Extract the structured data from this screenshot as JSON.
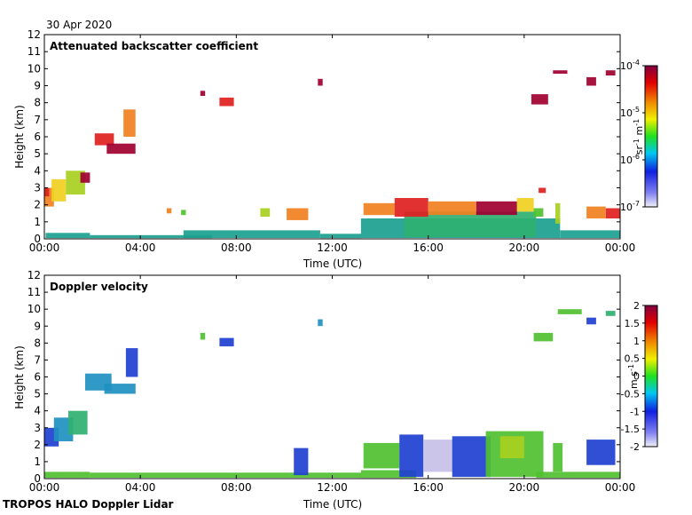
{
  "header": {
    "date": "30 Apr 2020"
  },
  "footer": {
    "label": "TROPOS HALO Doppler Lidar"
  },
  "colors": {
    "teal": "#1a9f8f",
    "green_teal": "#2fb070",
    "green": "#50c030",
    "yellow_green": "#a8d020",
    "yellow": "#f0d020",
    "orange": "#f08020",
    "red": "#e02020",
    "dark_red": "#a00030",
    "blue": "#2040d0",
    "dark_blue": "#1020a0",
    "cyan": "#2090c0",
    "light_purple": "#c8c0e8"
  },
  "chart_data": [
    {
      "type": "heatmap",
      "title": "Attenuated backscatter coefficient",
      "xlabel": "Time (UTC)",
      "ylabel": "Height (km)",
      "xlim": [
        0,
        24
      ],
      "ylim": [
        0,
        12
      ],
      "x_ticks": [
        "00:00",
        "04:00",
        "08:00",
        "12:00",
        "16:00",
        "20:00",
        "00:00"
      ],
      "y_ticks": [
        "0",
        "1",
        "2",
        "3",
        "4",
        "5",
        "6",
        "7",
        "8",
        "9",
        "10",
        "11",
        "12"
      ],
      "colorbar": {
        "label": "sr-1 m-1",
        "scale": "log",
        "range": [
          1e-07,
          0.0001
        ],
        "tick_base": "10",
        "tick_exponents": [
          "-7",
          "-6",
          "-5",
          "-4"
        ],
        "tick_values": [
          1e-07,
          1e-06,
          1e-05,
          0.0001
        ]
      },
      "features": [
        {
          "t0": 0.05,
          "t1": 1.9,
          "h0": 0.05,
          "h1": 0.35,
          "color": "teal"
        },
        {
          "t0": 1.9,
          "t1": 7.0,
          "h0": 0.05,
          "h1": 0.22,
          "color": "teal"
        },
        {
          "t0": 5.8,
          "t1": 11.5,
          "h0": 0.05,
          "h1": 0.5,
          "color": "teal"
        },
        {
          "t0": 11.5,
          "t1": 13.2,
          "h0": 0.05,
          "h1": 0.3,
          "color": "teal"
        },
        {
          "t0": 13.2,
          "t1": 21.5,
          "h0": 0.05,
          "h1": 1.2,
          "color": "teal"
        },
        {
          "t0": 15.0,
          "t1": 20.5,
          "h0": 0.1,
          "h1": 1.6,
          "color": "green_teal"
        },
        {
          "t0": 21.5,
          "t1": 24.0,
          "h0": 0.05,
          "h1": 0.5,
          "color": "teal"
        },
        {
          "t0": 0.0,
          "t1": 0.4,
          "h0": 1.9,
          "h1": 3.0,
          "color": "orange"
        },
        {
          "t0": 0.0,
          "t1": 0.2,
          "h0": 2.5,
          "h1": 3.0,
          "color": "red"
        },
        {
          "t0": 0.3,
          "t1": 0.9,
          "h0": 2.2,
          "h1": 3.5,
          "color": "yellow"
        },
        {
          "t0": 0.9,
          "t1": 1.7,
          "h0": 2.6,
          "h1": 4.0,
          "color": "yellow_green"
        },
        {
          "t0": 1.5,
          "t1": 1.9,
          "h0": 3.3,
          "h1": 3.9,
          "color": "dark_red"
        },
        {
          "t0": 2.1,
          "t1": 2.9,
          "h0": 5.5,
          "h1": 6.2,
          "color": "red"
        },
        {
          "t0": 2.6,
          "t1": 3.8,
          "h0": 5.0,
          "h1": 5.6,
          "color": "dark_red"
        },
        {
          "t0": 3.3,
          "t1": 3.8,
          "h0": 6.0,
          "h1": 7.6,
          "color": "orange"
        },
        {
          "t0": 6.5,
          "t1": 6.7,
          "h0": 8.4,
          "h1": 8.7,
          "color": "dark_red"
        },
        {
          "t0": 7.3,
          "t1": 7.9,
          "h0": 7.8,
          "h1": 8.3,
          "color": "red"
        },
        {
          "t0": 11.4,
          "t1": 11.6,
          "h0": 9.0,
          "h1": 9.4,
          "color": "dark_red"
        },
        {
          "t0": 5.1,
          "t1": 5.3,
          "h0": 1.5,
          "h1": 1.8,
          "color": "orange"
        },
        {
          "t0": 5.7,
          "t1": 5.9,
          "h0": 1.4,
          "h1": 1.7,
          "color": "green"
        },
        {
          "t0": 9.0,
          "t1": 9.4,
          "h0": 1.3,
          "h1": 1.8,
          "color": "yellow_green"
        },
        {
          "t0": 10.1,
          "t1": 11.0,
          "h0": 1.1,
          "h1": 1.8,
          "color": "orange"
        },
        {
          "t0": 13.3,
          "t1": 14.6,
          "h0": 1.4,
          "h1": 2.1,
          "color": "orange"
        },
        {
          "t0": 14.6,
          "t1": 16.0,
          "h0": 1.3,
          "h1": 2.4,
          "color": "red"
        },
        {
          "t0": 16.0,
          "t1": 18.0,
          "h0": 1.4,
          "h1": 2.2,
          "color": "orange"
        },
        {
          "t0": 18.0,
          "t1": 19.7,
          "h0": 1.4,
          "h1": 2.2,
          "color": "dark_red"
        },
        {
          "t0": 19.7,
          "t1": 20.4,
          "h0": 1.6,
          "h1": 2.4,
          "color": "yellow"
        },
        {
          "t0": 20.6,
          "t1": 20.9,
          "h0": 2.7,
          "h1": 3.0,
          "color": "red"
        },
        {
          "t0": 20.4,
          "t1": 20.8,
          "h0": 1.3,
          "h1": 1.8,
          "color": "green"
        },
        {
          "t0": 21.3,
          "t1": 21.5,
          "h0": 0.9,
          "h1": 2.1,
          "color": "yellow_green"
        },
        {
          "t0": 22.6,
          "t1": 23.4,
          "h0": 1.2,
          "h1": 1.9,
          "color": "orange"
        },
        {
          "t0": 23.4,
          "t1": 24.0,
          "h0": 1.2,
          "h1": 1.8,
          "color": "red"
        },
        {
          "t0": 20.3,
          "t1": 21.0,
          "h0": 7.9,
          "h1": 8.5,
          "color": "dark_red"
        },
        {
          "t0": 21.2,
          "t1": 21.8,
          "h0": 9.7,
          "h1": 9.9,
          "color": "dark_red"
        },
        {
          "t0": 22.6,
          "t1": 23.0,
          "h0": 9.0,
          "h1": 9.5,
          "color": "dark_red"
        },
        {
          "t0": 23.4,
          "t1": 23.8,
          "h0": 9.6,
          "h1": 9.9,
          "color": "dark_red"
        }
      ]
    },
    {
      "type": "heatmap",
      "title": "Doppler velocity",
      "xlabel": "Time (UTC)",
      "ylabel": "Height (km)",
      "xlim": [
        0,
        24
      ],
      "ylim": [
        0,
        12
      ],
      "x_ticks": [
        "00:00",
        "04:00",
        "08:00",
        "12:00",
        "16:00",
        "20:00",
        "00:00"
      ],
      "y_ticks": [
        "0",
        "1",
        "2",
        "3",
        "4",
        "5",
        "6",
        "7",
        "8",
        "9",
        "10",
        "11",
        "12"
      ],
      "colorbar": {
        "label": "m s-1",
        "scale": "linear",
        "range": [
          -2,
          2
        ],
        "tick_labels": [
          "2",
          "1.5",
          "1",
          "0.5",
          "0",
          "-0.5",
          "-1",
          "-1.5",
          "-2"
        ],
        "tick_values": [
          2,
          1.5,
          1,
          0.5,
          0,
          -0.5,
          -1,
          -1.5,
          -2
        ]
      },
      "features": [
        {
          "t0": 0.0,
          "t1": 1.9,
          "h0": 0.05,
          "h1": 0.4,
          "color": "green"
        },
        {
          "t0": 1.9,
          "t1": 13.2,
          "h0": 0.05,
          "h1": 0.35,
          "color": "green"
        },
        {
          "t0": 13.2,
          "t1": 15.5,
          "h0": 0.05,
          "h1": 0.5,
          "color": "green"
        },
        {
          "t0": 20.5,
          "t1": 24.0,
          "h0": 0.05,
          "h1": 0.4,
          "color": "green"
        },
        {
          "t0": 0.0,
          "t1": 0.6,
          "h0": 1.9,
          "h1": 3.0,
          "color": "blue"
        },
        {
          "t0": 0.4,
          "t1": 1.2,
          "h0": 2.2,
          "h1": 3.6,
          "color": "cyan"
        },
        {
          "t0": 1.0,
          "t1": 1.8,
          "h0": 2.6,
          "h1": 4.0,
          "color": "green_teal"
        },
        {
          "t0": 1.7,
          "t1": 2.8,
          "h0": 5.2,
          "h1": 6.2,
          "color": "cyan"
        },
        {
          "t0": 2.5,
          "t1": 3.8,
          "h0": 5.0,
          "h1": 5.6,
          "color": "cyan"
        },
        {
          "t0": 3.4,
          "t1": 3.9,
          "h0": 6.0,
          "h1": 7.7,
          "color": "blue"
        },
        {
          "t0": 6.5,
          "t1": 6.7,
          "h0": 8.2,
          "h1": 8.6,
          "color": "green"
        },
        {
          "t0": 7.3,
          "t1": 7.9,
          "h0": 7.8,
          "h1": 8.3,
          "color": "blue"
        },
        {
          "t0": 11.4,
          "t1": 11.6,
          "h0": 9.0,
          "h1": 9.4,
          "color": "cyan"
        },
        {
          "t0": 10.4,
          "t1": 11.0,
          "h0": 0.2,
          "h1": 1.8,
          "color": "blue"
        },
        {
          "t0": 13.3,
          "t1": 14.8,
          "h0": 0.6,
          "h1": 2.1,
          "color": "green"
        },
        {
          "t0": 14.8,
          "t1": 15.8,
          "h0": 0.1,
          "h1": 2.6,
          "color": "blue"
        },
        {
          "t0": 15.8,
          "t1": 17.0,
          "h0": 0.4,
          "h1": 2.3,
          "color": "light_purple"
        },
        {
          "t0": 17.0,
          "t1": 18.6,
          "h0": 0.1,
          "h1": 2.5,
          "color": "blue"
        },
        {
          "t0": 18.4,
          "t1": 20.8,
          "h0": 0.1,
          "h1": 2.8,
          "color": "green"
        },
        {
          "t0": 19.0,
          "t1": 20.0,
          "h0": 1.2,
          "h1": 2.5,
          "color": "yellow_green"
        },
        {
          "t0": 21.2,
          "t1": 21.6,
          "h0": 0.4,
          "h1": 2.1,
          "color": "green"
        },
        {
          "t0": 22.6,
          "t1": 23.8,
          "h0": 0.8,
          "h1": 2.3,
          "color": "blue"
        },
        {
          "t0": 20.4,
          "t1": 21.2,
          "h0": 8.1,
          "h1": 8.6,
          "color": "green"
        },
        {
          "t0": 21.4,
          "t1": 22.4,
          "h0": 9.7,
          "h1": 10.0,
          "color": "green"
        },
        {
          "t0": 22.6,
          "t1": 23.0,
          "h0": 9.1,
          "h1": 9.5,
          "color": "blue"
        },
        {
          "t0": 23.4,
          "t1": 23.8,
          "h0": 9.6,
          "h1": 9.9,
          "color": "green_teal"
        }
      ]
    }
  ]
}
